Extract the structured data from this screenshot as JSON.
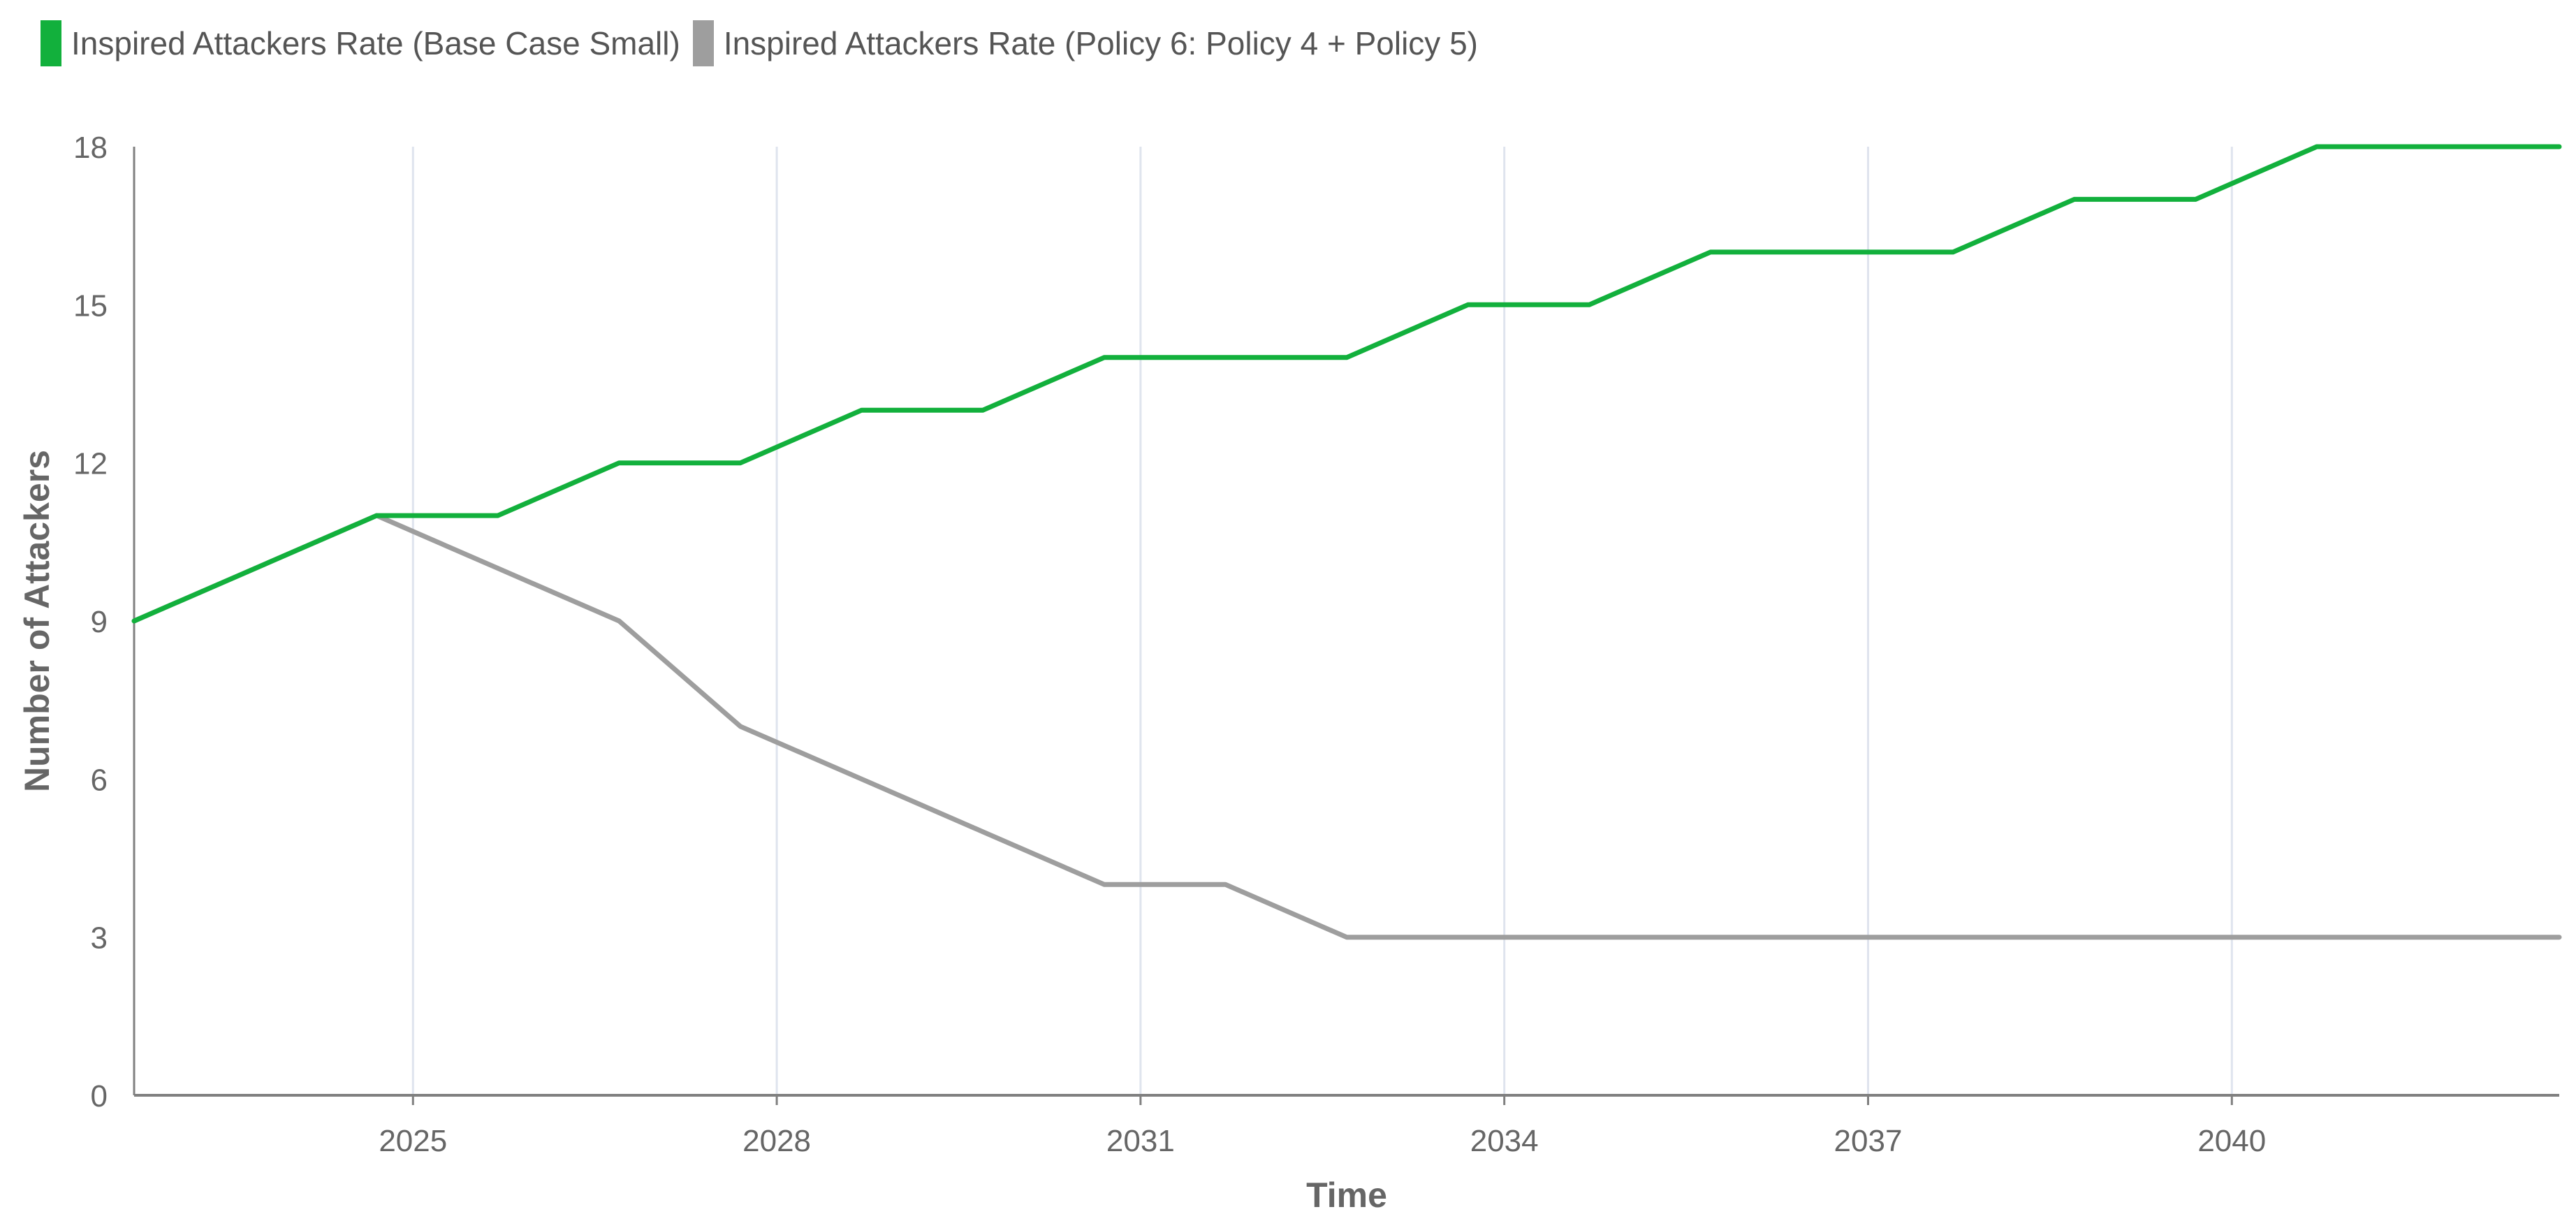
{
  "chart_data": {
    "type": "line",
    "title": "",
    "xlabel": "Time",
    "ylabel": "Number of Attackers",
    "xlim": [
      2022.7,
      2042.7
    ],
    "ylim": [
      0,
      18
    ],
    "x_ticks": [
      2025,
      2028,
      2031,
      2034,
      2037,
      2040
    ],
    "x_tick_labels": [
      "2025",
      "2028",
      "2031",
      "2034",
      "2037",
      "2040"
    ],
    "y_ticks": [
      0,
      3,
      6,
      9,
      12,
      15,
      18
    ],
    "y_tick_labels": [
      "0",
      "3",
      "6",
      "9",
      "12",
      "15",
      "18"
    ],
    "grid": "vertical",
    "legend_position": "top-left",
    "series": [
      {
        "name": "Inspired Attackers Rate (Base Case Small)",
        "color": "#12b03c",
        "x": [
          2022.7,
          2024.7,
          2025.7,
          2026.7,
          2027.7,
          2028.7,
          2029.7,
          2030.7,
          2031.7,
          2032.7,
          2033.7,
          2034.7,
          2035.7,
          2036.7,
          2037.7,
          2038.7,
          2039.7,
          2040.7,
          2041.7,
          2042.7
        ],
        "values": [
          9,
          11,
          11,
          12,
          12,
          13,
          13,
          14,
          14,
          14,
          15,
          15,
          16,
          16,
          16,
          17,
          17,
          18,
          18,
          18
        ]
      },
      {
        "name": "Inspired Attackers Rate (Policy 6: Policy 4 + Policy 5)",
        "color": "#9e9e9e",
        "x": [
          2022.7,
          2024.7,
          2025.7,
          2026.7,
          2027.7,
          2028.7,
          2029.7,
          2030.7,
          2031.7,
          2032.7,
          2033.7,
          2034.7,
          2035.7,
          2036.7,
          2037.7,
          2038.7,
          2039.7,
          2040.7,
          2041.7,
          2042.7
        ],
        "values": [
          9,
          11,
          10,
          9,
          7,
          6,
          5,
          4,
          4,
          3,
          3,
          3,
          3,
          3,
          3,
          3,
          3,
          3,
          3,
          3
        ]
      }
    ]
  },
  "style": {
    "grid_color": "#dfe4ee",
    "axis_color": "#808080",
    "plot_bg": "#ffffff"
  }
}
